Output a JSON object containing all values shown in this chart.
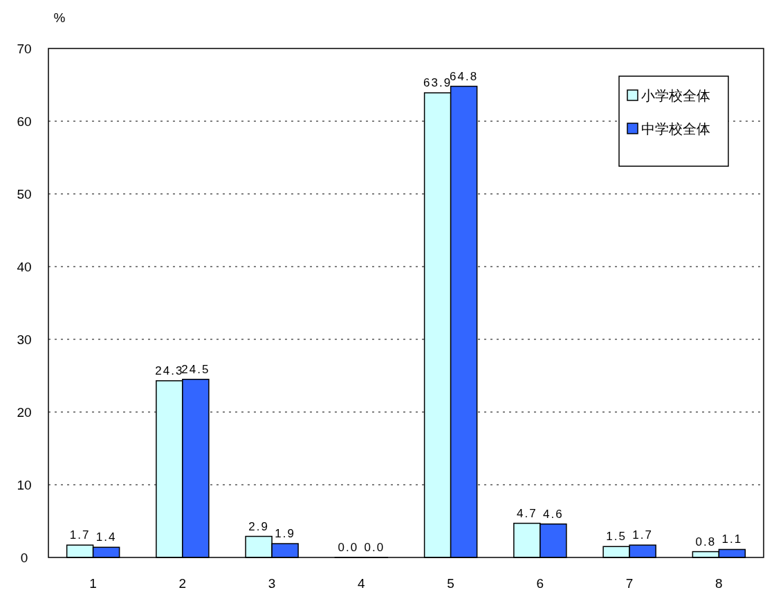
{
  "chart_data": {
    "type": "bar",
    "ylabel": "%",
    "categories": [
      "1",
      "2",
      "3",
      "4",
      "5",
      "6",
      "7",
      "8"
    ],
    "series": [
      {
        "name": "小学校全体",
        "color": "#ccffff",
        "values": [
          1.7,
          24.3,
          2.9,
          0.0,
          63.9,
          4.7,
          1.5,
          0.8
        ],
        "value_labels": [
          "1.7",
          "24.3",
          "2.9",
          "0.0",
          "63.9",
          "4.7",
          "1.5",
          "0.8"
        ]
      },
      {
        "name": "中学校全体",
        "color": "#3366ff",
        "values": [
          1.4,
          24.5,
          1.9,
          0.0,
          64.8,
          4.6,
          1.7,
          1.1
        ],
        "value_labels": [
          "1.4",
          "24.5",
          "1.9",
          "0.0",
          "64.8",
          "4.6",
          "1.7",
          "1.1"
        ]
      }
    ],
    "ylim": [
      0,
      70
    ],
    "yticks": [
      0,
      10,
      20,
      30,
      40,
      50,
      60,
      70
    ],
    "grid": "y",
    "legend": "top right"
  }
}
